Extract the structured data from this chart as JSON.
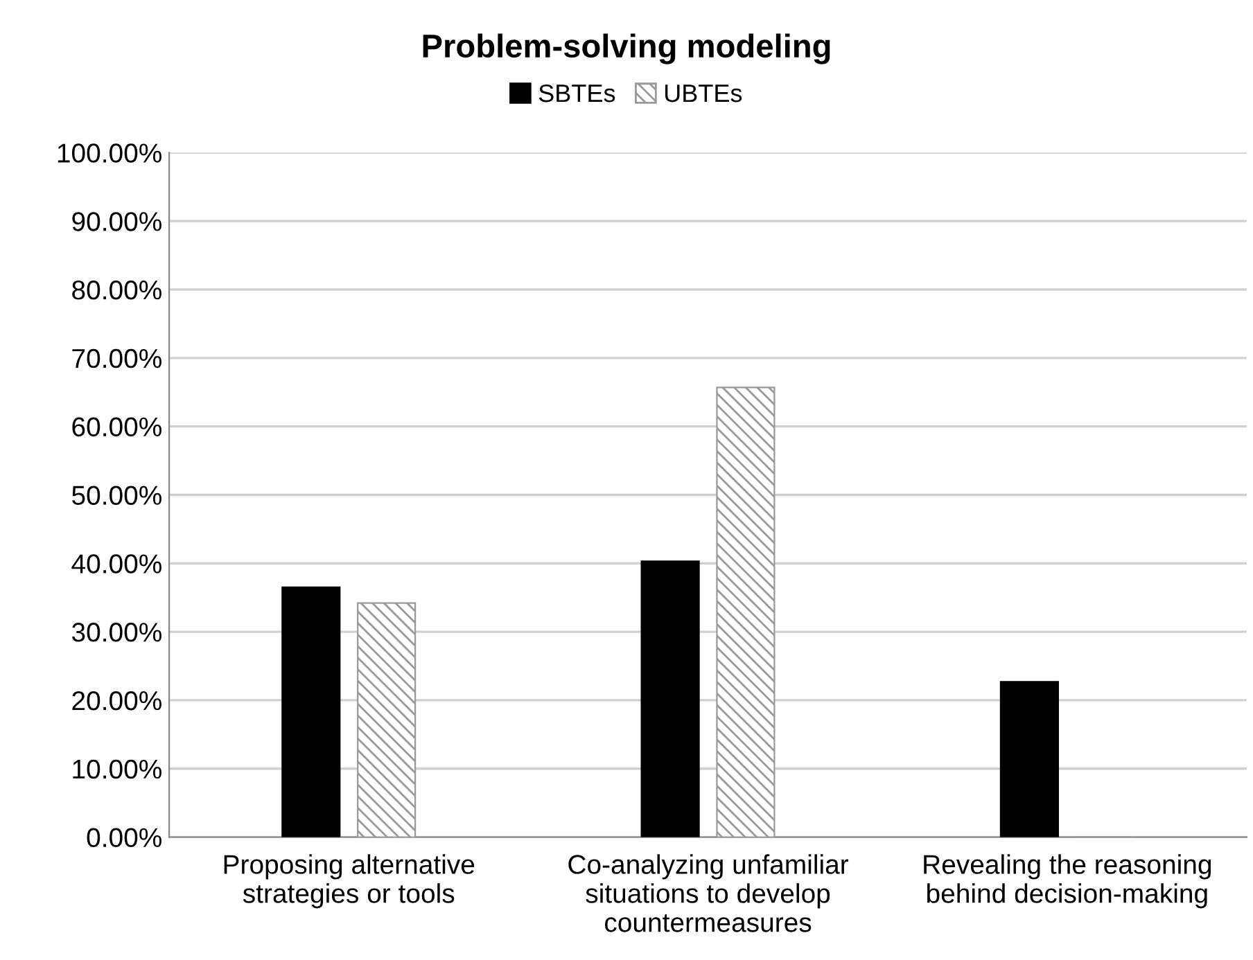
{
  "chart_data": {
    "type": "bar",
    "title": "Problem-solving modeling",
    "categories": [
      "Proposing alternative strategies or tools",
      "Co-analyzing unfamiliar situations to develop countermeasures",
      "Revealing the reasoning behind decision-making"
    ],
    "series": [
      {
        "name": "SBTEs",
        "color": "#000000",
        "values": [
          36.5,
          40.3,
          22.7
        ]
      },
      {
        "name": "UBTEs",
        "color": "#999999",
        "values": [
          34.2,
          65.7,
          0
        ]
      }
    ],
    "ylim": [
      0,
      100
    ],
    "yticks": [
      {
        "value": 0,
        "label": "0.00%"
      },
      {
        "value": 10,
        "label": "10.00%"
      },
      {
        "value": 20,
        "label": "20.00%"
      },
      {
        "value": 30,
        "label": "30.00%"
      },
      {
        "value": 40,
        "label": "40.00%"
      },
      {
        "value": 50,
        "label": "50.00%"
      },
      {
        "value": 60,
        "label": "60.00%"
      },
      {
        "value": 70,
        "label": "70.00%"
      },
      {
        "value": 80,
        "label": "80.00%"
      },
      {
        "value": 90,
        "label": "90.00%"
      },
      {
        "value": 100,
        "label": "100.00%"
      }
    ],
    "grid": "y",
    "legend": "top"
  }
}
